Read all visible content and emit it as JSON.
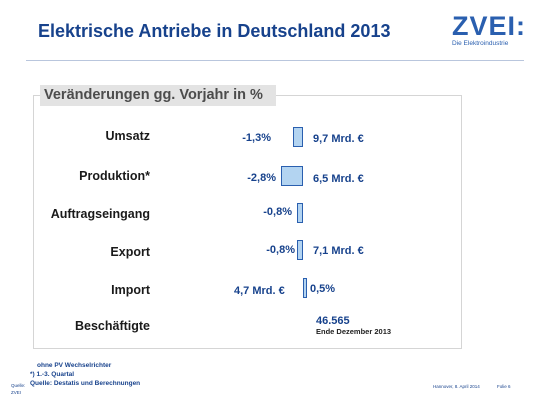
{
  "slide": {
    "title": "Elektrische Antriebe in Deutschland 2013",
    "logo": "ZVEI:",
    "logo_tagline": "Die Elektroindustrie"
  },
  "chart_data": {
    "type": "bar",
    "title": "Veränderungen gg.  Vorjahr in %",
    "xlabel": "",
    "ylabel": "",
    "categories": [
      "Umsatz",
      "Produktion*",
      "Auftragseingang",
      "Export",
      "Import"
    ],
    "values": [
      -1.3,
      -2.8,
      -0.8,
      -0.8,
      0.5
    ],
    "value_labels": [
      "-1,3%",
      "-2,8%",
      "-0,8%",
      "-0,8%",
      "0,5%"
    ],
    "volume_labels": [
      "9,7 Mrd. €",
      "6,5 Mrd. €",
      "",
      "7,1 Mrd. €",
      "4,7 Mrd. €"
    ],
    "extra_row": {
      "label": "Beschäftigte",
      "value": "46.565",
      "note": "Ende Dezember 2013"
    }
  },
  "footer": {
    "footnote_pv": "ohne PV Wechselrichter",
    "footnote_quarter": "*) 1.-3. Quartal",
    "source": "Quelle: Destatis und Berechnungen",
    "source_prefix_line1": "Quelle:",
    "source_prefix_line2": "ZVEI",
    "date": "Hannover, 8. April 2014",
    "page": "Folie 6"
  },
  "colors": {
    "title": "#17428c",
    "bar_fill": "#b3d4f1",
    "bar_stroke": "#2a5faf",
    "subtitle_bg": "#e3e3e3"
  }
}
